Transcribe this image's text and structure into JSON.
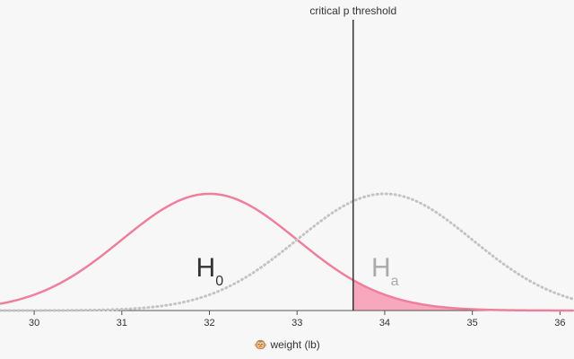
{
  "chart_data": {
    "type": "distribution",
    "xlabel": "🐵 weight (lb)",
    "xlim": [
      29.61,
      36.16
    ],
    "xticks": [
      30,
      31,
      32,
      33,
      34,
      35,
      36
    ],
    "ylim": [
      0,
      1
    ],
    "threshold": {
      "value": 33.64,
      "label": "critical p threshold",
      "color": "#333333"
    },
    "tail_fill": "#f7a8bc",
    "distributions": [
      {
        "name": "H",
        "subscript": "0",
        "mean": 32,
        "sd": 1,
        "color": "#ef7f9c",
        "style": "solid",
        "label_color": "#333333"
      },
      {
        "name": "H",
        "subscript": "a",
        "mean": 34,
        "sd": 1,
        "color": "#c4c4c4",
        "style": "dotted",
        "label_color": "#aaaaaa"
      }
    ]
  }
}
